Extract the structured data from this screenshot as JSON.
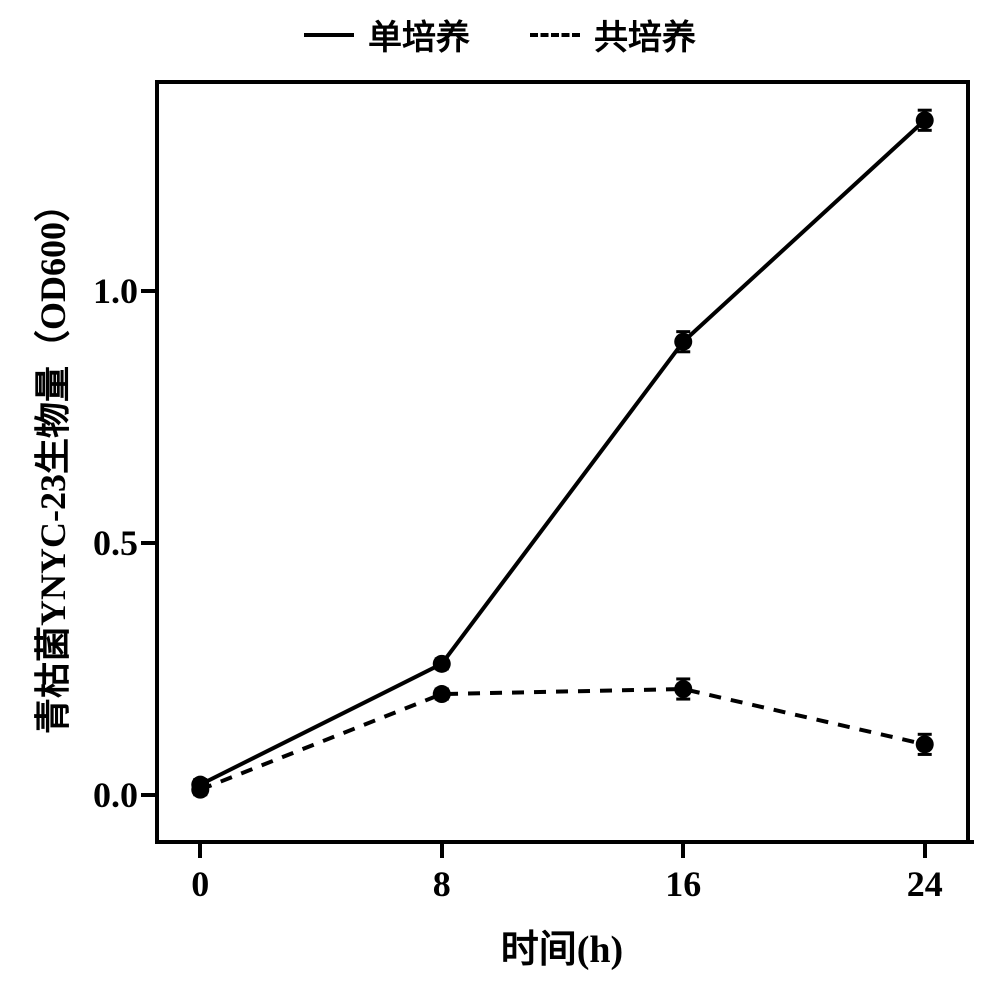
{
  "chart": {
    "type": "line",
    "background_color": "#ffffff",
    "axis_color": "#000000",
    "axis_width": 4,
    "marker_size": 9,
    "marker_color": "#000000",
    "line_width": 4,
    "error_cap_width": 14,
    "error_bar_color": "#000000",
    "legend": {
      "items": [
        {
          "label": "单培养",
          "line_style": "solid"
        },
        {
          "label": "共培养",
          "line_style": "dashed"
        }
      ],
      "fontsize": 34
    },
    "x_axis": {
      "label": "时间(h)",
      "label_fontsize": 38,
      "ticks": [
        0,
        8,
        16,
        24
      ],
      "range": [
        -1.5,
        25.5
      ],
      "tick_fontsize": 36
    },
    "y_axis": {
      "label": "青枯菌YNYC-23生物量（OD600）",
      "label_fontsize": 36,
      "ticks": [
        0.0,
        0.5,
        1.0
      ],
      "range": [
        -0.09,
        1.42
      ],
      "tick_fontsize": 36
    },
    "series": [
      {
        "name": "单培养",
        "line_style": "solid",
        "dash": "",
        "color": "#000000",
        "x": [
          0,
          8,
          16,
          24
        ],
        "y": [
          0.02,
          0.26,
          0.9,
          1.34
        ],
        "yerr": [
          0.01,
          0.01,
          0.02,
          0.02
        ]
      },
      {
        "name": "共培养",
        "line_style": "dashed",
        "dash": "12 10",
        "color": "#000000",
        "x": [
          0,
          8,
          16,
          24
        ],
        "y": [
          0.01,
          0.2,
          0.21,
          0.1
        ],
        "yerr": [
          0.01,
          0.01,
          0.02,
          0.02
        ]
      }
    ]
  }
}
